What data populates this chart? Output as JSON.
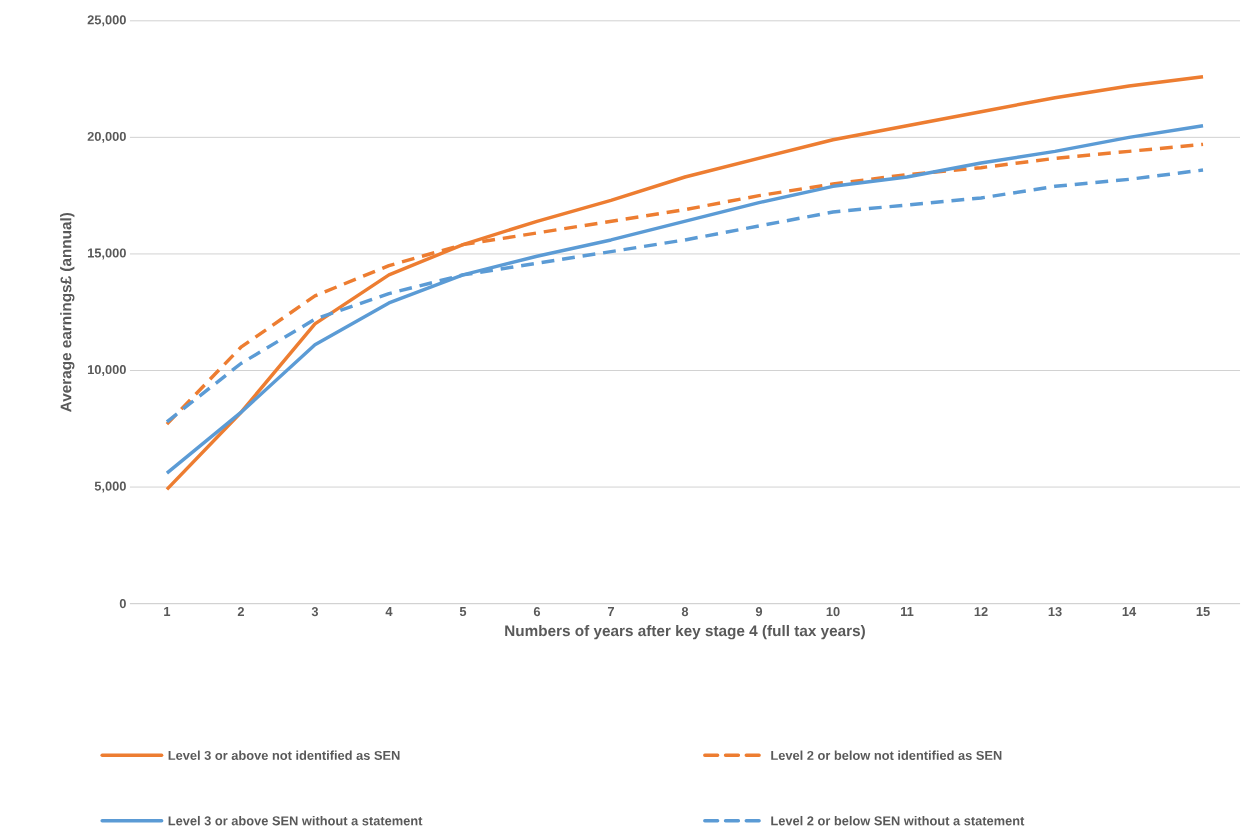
{
  "chart_data": {
    "type": "line",
    "xlabel": "Numbers of years after key stage 4 (full tax years)",
    "ylabel": "Average earnings£  (annual)",
    "categories": [
      "1",
      "2",
      "3",
      "4",
      "5",
      "6",
      "7",
      "8",
      "9",
      "10",
      "11",
      "12",
      "13",
      "14",
      "15"
    ],
    "series": [
      {
        "name": "Level 3 or above not identified as SEN",
        "color": "#ed7d31",
        "line_style": "solid",
        "values": [
          4900,
          8200,
          12000,
          14100,
          15400,
          16400,
          17300,
          18300,
          19100,
          19900,
          20500,
          21100,
          21700,
          22200,
          22600
        ]
      },
      {
        "name": "Level 2 or below not identified as SEN",
        "color": "#ed7d31",
        "line_style": "dashed",
        "values": [
          7700,
          11000,
          13200,
          14500,
          15400,
          15900,
          16400,
          16900,
          17500,
          18000,
          18400,
          18700,
          19100,
          19400,
          19700
        ]
      },
      {
        "name": "Level 3 or above SEN without a statement",
        "color": "#5b9bd5",
        "line_style": "solid",
        "values": [
          5600,
          8200,
          11100,
          12900,
          14100,
          14900,
          15600,
          16400,
          17200,
          17900,
          18300,
          18900,
          19400,
          20000,
          20500
        ]
      },
      {
        "name": "Level 2 or below SEN without a statement",
        "color": "#5b9bd5",
        "line_style": "dashed",
        "values": [
          7800,
          10300,
          12200,
          13300,
          14100,
          14600,
          15100,
          15600,
          16200,
          16800,
          17100,
          17400,
          17900,
          18200,
          18600
        ]
      }
    ],
    "ylim": [
      0,
      25000
    ],
    "yticks": [
      0,
      {
        "value": 5000,
        "label": "5,000"
      },
      {
        "value": 10000,
        "label": "10,000"
      },
      {
        "value": 15000,
        "label": "15,000"
      },
      {
        "value": 20000,
        "label": "20,000"
      },
      {
        "value": 25000,
        "label": "25,000"
      }
    ],
    "grid": "y",
    "legend": "bottom",
    "marker": "none"
  }
}
